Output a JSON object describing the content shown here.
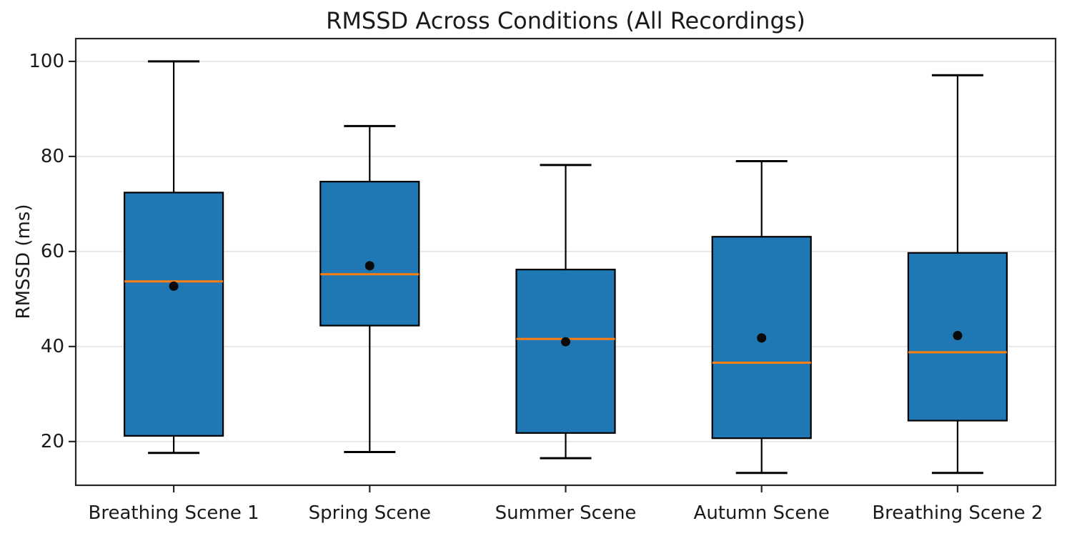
{
  "chart_data": {
    "type": "box",
    "title": "RMSSD Across Conditions (All Recordings)",
    "xlabel": "",
    "ylabel": "RMSSD (ms)",
    "categories": [
      "Breathing Scene 1",
      "Spring Scene",
      "Summer Scene",
      "Autumn Scene",
      "Breathing Scene 2"
    ],
    "boxes": [
      {
        "label": "Breathing Scene 1",
        "whisker_low": 17.6,
        "q1": 21.2,
        "median": 53.7,
        "mean": 52.7,
        "q3": 72.4,
        "whisker_high": 100.0
      },
      {
        "label": "Spring Scene",
        "whisker_low": 17.8,
        "q1": 44.4,
        "median": 55.2,
        "mean": 57.0,
        "q3": 74.7,
        "whisker_high": 86.4
      },
      {
        "label": "Summer Scene",
        "whisker_low": 16.5,
        "q1": 21.8,
        "median": 41.6,
        "mean": 41.0,
        "q3": 56.2,
        "whisker_high": 78.2
      },
      {
        "label": "Autumn Scene",
        "whisker_low": 13.4,
        "q1": 20.7,
        "median": 36.6,
        "mean": 41.8,
        "q3": 63.1,
        "whisker_high": 79.0
      },
      {
        "label": "Breathing Scene 2",
        "whisker_low": 13.4,
        "q1": 24.4,
        "median": 38.8,
        "mean": 42.3,
        "q3": 59.7,
        "whisker_high": 97.1
      }
    ],
    "yticks": [
      20,
      40,
      60,
      80,
      100
    ],
    "ylim": [
      10.8,
      104.8
    ],
    "grid": "horizontal",
    "legend": "none",
    "colors": {
      "box_fill": "#1f77b4",
      "box_edge": "#000000",
      "median_line": "#ff7f0e",
      "mean_dot": "#0a0a0a",
      "whisker": "#000000",
      "gridline": "#e7e7e7",
      "spine": "#262626",
      "text": "#1a1a1a",
      "background": "#ffffff"
    }
  }
}
